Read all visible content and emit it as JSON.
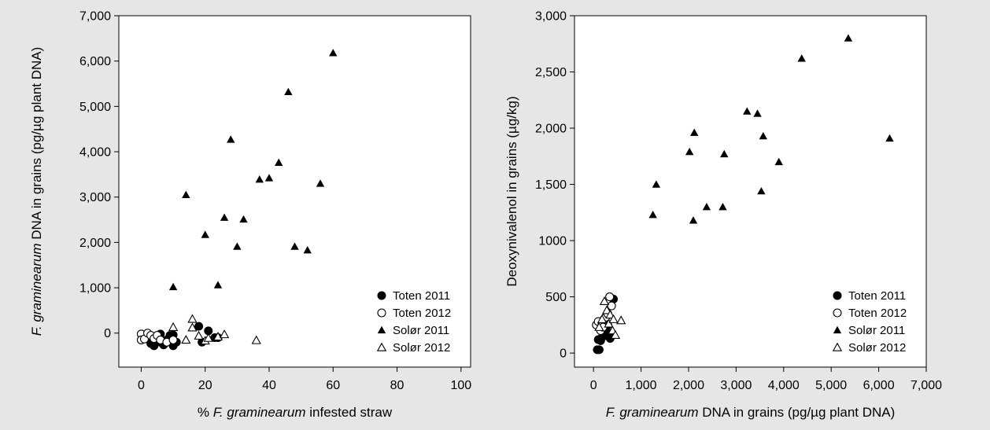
{
  "chart_data": [
    {
      "type": "scatter",
      "xlabel_prefix": "% ",
      "xlabel_italic": "F. graminearum",
      "xlabel_suffix": " infested straw",
      "ylabel_italic": "F. graminearum",
      "ylabel_suffix": " DNA in grains (pg/µg plant DNA)",
      "xlim": [
        -7,
        103
      ],
      "ylim": [
        -750,
        7000
      ],
      "xticks": [
        0,
        20,
        40,
        60,
        80,
        100
      ],
      "xtick_labels": [
        "0",
        "20",
        "40",
        "60",
        "80",
        "100"
      ],
      "yticks": [
        0,
        1000,
        2000,
        3000,
        4000,
        5000,
        6000,
        7000
      ],
      "ytick_labels": [
        "0",
        "1,000",
        "2,000",
        "3,000",
        "4,000",
        "5,000",
        "6,000",
        "7,000"
      ],
      "legend_position": "bottom-right",
      "series": [
        {
          "name": "Toten 2011",
          "marker": "filled-circle",
          "points": [
            [
              3,
              -230
            ],
            [
              4,
              -280
            ],
            [
              5,
              -100
            ],
            [
              6,
              -200
            ],
            [
              6,
              -20
            ],
            [
              7,
              -260
            ],
            [
              8,
              -150
            ],
            [
              9,
              -50
            ],
            [
              10,
              -280
            ],
            [
              10,
              -40
            ],
            [
              11,
              -200
            ],
            [
              18,
              150
            ],
            [
              19,
              -200
            ],
            [
              21,
              50
            ],
            [
              23,
              -100
            ],
            [
              24,
              -100
            ]
          ]
        },
        {
          "name": "Toten 2012",
          "marker": "open-circle",
          "points": [
            [
              0,
              -20
            ],
            [
              0,
              -150
            ],
            [
              1,
              -130
            ],
            [
              2,
              0
            ],
            [
              3,
              -50
            ],
            [
              4,
              -120
            ],
            [
              5,
              -50
            ],
            [
              6,
              -150
            ],
            [
              8,
              -200
            ],
            [
              10,
              -150
            ]
          ]
        },
        {
          "name": "Solør 2011",
          "marker": "filled-triangle",
          "points": [
            [
              10,
              1020
            ],
            [
              14,
              3050
            ],
            [
              20,
              2170
            ],
            [
              24,
              1060
            ],
            [
              26,
              2550
            ],
            [
              28,
              4270
            ],
            [
              30,
              1910
            ],
            [
              32,
              2510
            ],
            [
              37,
              3390
            ],
            [
              40,
              3420
            ],
            [
              43,
              3760
            ],
            [
              46,
              5320
            ],
            [
              48,
              1910
            ],
            [
              52,
              1830
            ],
            [
              56,
              3300
            ],
            [
              60,
              6180
            ]
          ]
        },
        {
          "name": "Solør 2012",
          "marker": "open-triangle",
          "points": [
            [
              10,
              130
            ],
            [
              14,
              -150
            ],
            [
              16,
              310
            ],
            [
              16,
              120
            ],
            [
              18,
              -60
            ],
            [
              20,
              -170
            ],
            [
              21,
              -110
            ],
            [
              24,
              -80
            ],
            [
              26,
              -30
            ],
            [
              36,
              -160
            ]
          ]
        }
      ]
    },
    {
      "type": "scatter",
      "xlabel_italic": "F. graminearum",
      "xlabel_suffix": " DNA in grains (pg/µg plant DNA)",
      "ylabel": "Deoxynivalenol in grains (µg/kg)",
      "xlim": [
        -400,
        7000
      ],
      "ylim": [
        -125,
        3000
      ],
      "xticks": [
        0,
        1000,
        2000,
        3000,
        4000,
        5000,
        6000,
        7000
      ],
      "xtick_labels": [
        "0",
        "1,000",
        "2,000",
        "3,000",
        "4,000",
        "5,000",
        "6,000",
        "7,000"
      ],
      "yticks": [
        0,
        500,
        1000,
        1500,
        2000,
        2500,
        3000
      ],
      "ytick_labels": [
        "0",
        "500",
        "1000",
        "1,500",
        "2,000",
        "2,500",
        "3,000"
      ],
      "legend_position": "bottom-right",
      "series": [
        {
          "name": "Toten 2011",
          "marker": "filled-circle",
          "points": [
            [
              80,
              30
            ],
            [
              120,
              30
            ],
            [
              100,
              120
            ],
            [
              150,
              110
            ],
            [
              200,
              150
            ],
            [
              220,
              200
            ],
            [
              250,
              230
            ],
            [
              260,
              270
            ],
            [
              300,
              250
            ],
            [
              320,
              180
            ],
            [
              350,
              130
            ],
            [
              420,
              480
            ],
            [
              380,
              160
            ],
            [
              180,
              140
            ]
          ]
        },
        {
          "name": "Toten 2012",
          "marker": "open-circle",
          "points": [
            [
              60,
              250
            ],
            [
              100,
              280
            ],
            [
              150,
              200
            ],
            [
              180,
              260
            ],
            [
              220,
              300
            ],
            [
              260,
              320
            ],
            [
              300,
              350
            ],
            [
              340,
              500
            ],
            [
              380,
              420
            ],
            [
              200,
              230
            ]
          ]
        },
        {
          "name": "Solør 2011",
          "marker": "filled-triangle",
          "points": [
            [
              1250,
              1230
            ],
            [
              1320,
              1500
            ],
            [
              2020,
              1790
            ],
            [
              2100,
              1180
            ],
            [
              2120,
              1960
            ],
            [
              2380,
              1300
            ],
            [
              2720,
              1300
            ],
            [
              2750,
              1770
            ],
            [
              3230,
              2150
            ],
            [
              3450,
              2130
            ],
            [
              3530,
              1440
            ],
            [
              3570,
              1930
            ],
            [
              3900,
              1700
            ],
            [
              4380,
              2620
            ],
            [
              5360,
              2800
            ],
            [
              6230,
              1910
            ]
          ]
        },
        {
          "name": "Solør 2012",
          "marker": "open-triangle",
          "points": [
            [
              120,
              230
            ],
            [
              180,
              300
            ],
            [
              230,
              460
            ],
            [
              280,
              380
            ],
            [
              320,
              260
            ],
            [
              350,
              340
            ],
            [
              400,
              200
            ],
            [
              420,
              300
            ],
            [
              460,
              160
            ],
            [
              580,
              290
            ]
          ]
        }
      ]
    }
  ]
}
